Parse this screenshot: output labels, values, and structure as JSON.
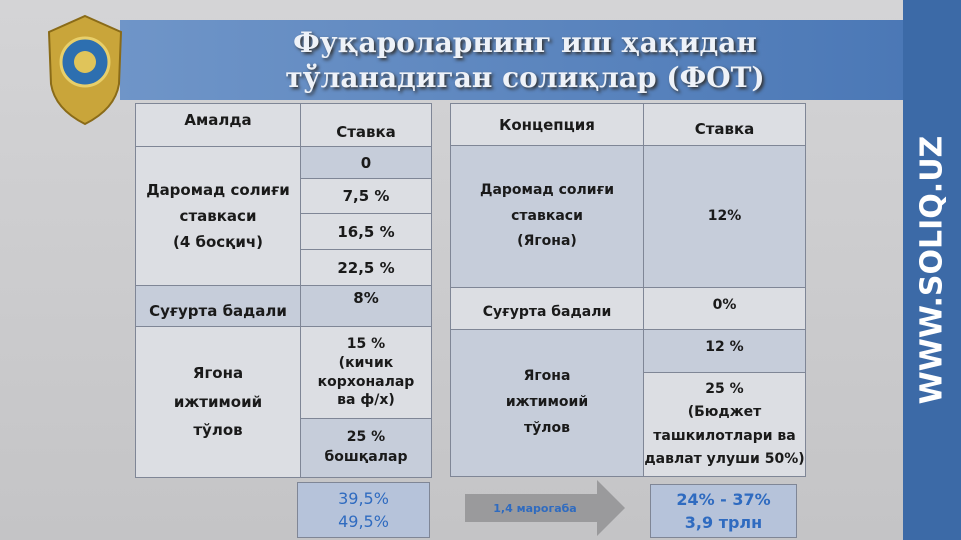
{
  "header": {
    "title": "Фуқароларнинг иш ҳақидан\nтўланадиган солиқлар (ФОТ)",
    "site": "WWW.SOLIQ.UZ"
  },
  "left_table": {
    "header": [
      "Амалда",
      "Ставка"
    ],
    "income_tax": {
      "label": "Даромад солиғи\nставкаси\n(4 босқич)",
      "rates": [
        "0",
        "7,5 %",
        "16,5 %",
        "22,5 %"
      ]
    },
    "insurance": {
      "label": "Суғурта бадали",
      "rate": "8%"
    },
    "social": {
      "label": "Ягона\nижтимоий\nтўлов",
      "rates": [
        "15 %\n(кичик\nкорхоналар\nва ф/х)",
        "25 %\nбошқалар"
      ]
    }
  },
  "right_table": {
    "header": [
      "Концепция",
      "Ставка"
    ],
    "income_tax": {
      "label": "Даромад солиғи\nставкаси\n(Ягона)",
      "rate": "12%"
    },
    "insurance": {
      "label": "Суғурта бадали",
      "rate": "0%"
    },
    "social": {
      "label": "Ягона\nижтимоий\nтўлов",
      "rates": [
        "12 %",
        "25 %\n(Бюджет\nташкилотлари ва\nдавлат улуши 50%)"
      ]
    }
  },
  "summary": {
    "current": "39,5%\n49,5%",
    "arrow": "1,4 марогаба",
    "concept": "24% - 37%\n3,9 трлн"
  }
}
